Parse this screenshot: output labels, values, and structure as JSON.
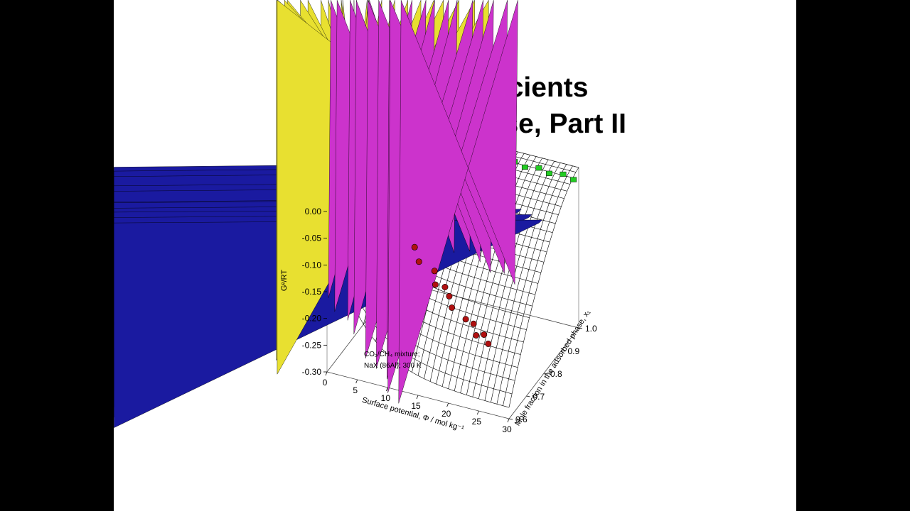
{
  "slide": {
    "title_line1": "Activity Coefficients",
    "title_line2": "in Adsorbed Phase, Part II"
  },
  "chart_data": {
    "type": "scatter",
    "subtype": "3d-surface-with-points",
    "title": "Activity Coefficients in Adsorbed Phase, Part II",
    "xlabel": "Surface potential, Φ /  mol kg⁻¹",
    "ylabel": "Mole fraction in the adsorbed phase, x₁",
    "zlabel": "Gᵉ/RT",
    "x_ticks": [
      "0",
      "5",
      "10",
      "15",
      "20",
      "25",
      "30"
    ],
    "y_ticks": [
      "0.6",
      "0.7",
      "0.8",
      "0.9",
      "1.0"
    ],
    "z_ticks": [
      "0.00",
      "-0.05",
      "-0.10",
      "-0.15",
      "-0.20",
      "-0.25",
      "-0.30"
    ],
    "xlim": [
      0,
      30
    ],
    "ylim": [
      0.6,
      1.0
    ],
    "zlim": [
      -0.3,
      0.0
    ],
    "annotation_line1": "CO₂/CH₄ mixture;",
    "annotation_line2": "NaX (86Al); 300 K",
    "surface_color": "#000000",
    "series": [
      {
        "marker": "circle",
        "color": "#b01010",
        "x": [
          13,
          14,
          16,
          17,
          18,
          19,
          20,
          22,
          23,
          24,
          25,
          26
        ],
        "y": [
          0.65,
          0.64,
          0.66,
          0.63,
          0.65,
          0.64,
          0.62,
          0.63,
          0.64,
          0.62,
          0.63,
          0.62
        ],
        "z": [
          -0.05,
          -0.07,
          -0.09,
          -0.1,
          -0.11,
          -0.12,
          -0.13,
          -0.15,
          -0.16,
          -0.17,
          -0.17,
          -0.18
        ]
      },
      {
        "marker": "triangle-down",
        "color": "#cc33cc",
        "x": [
          10,
          12,
          14,
          16,
          18,
          20,
          22,
          24,
          26,
          28
        ],
        "y": [
          0.74,
          0.75,
          0.73,
          0.74,
          0.72,
          0.74,
          0.73,
          0.72,
          0.73,
          0.72
        ],
        "z": [
          -0.04,
          -0.05,
          -0.06,
          -0.07,
          -0.08,
          -0.08,
          -0.09,
          -0.1,
          -0.1,
          -0.11
        ]
      },
      {
        "marker": "diamond",
        "color": "#e8e030",
        "x": [
          2,
          3,
          4,
          5,
          6,
          7,
          8,
          9,
          10,
          12,
          14,
          16
        ],
        "y": [
          0.62,
          0.65,
          0.7,
          0.74,
          0.78,
          0.82,
          0.86,
          0.9,
          0.92,
          0.94,
          0.96,
          0.97
        ],
        "z": [
          -0.08,
          -0.07,
          -0.06,
          -0.05,
          -0.05,
          -0.04,
          -0.04,
          -0.03,
          -0.03,
          -0.02,
          -0.02,
          -0.02
        ]
      },
      {
        "marker": "triangle-up",
        "color": "#1a1aa0",
        "x": [
          6,
          8,
          10,
          12,
          14,
          16,
          18,
          20,
          22,
          24,
          26,
          28
        ],
        "y": [
          0.86,
          0.88,
          0.87,
          0.86,
          0.88,
          0.87,
          0.86,
          0.87,
          0.86,
          0.88,
          0.87,
          0.86
        ],
        "z": [
          -0.01,
          -0.02,
          -0.02,
          -0.03,
          -0.03,
          -0.03,
          -0.04,
          -0.04,
          -0.04,
          -0.05,
          -0.05,
          -0.05
        ]
      },
      {
        "marker": "square",
        "color": "#22cc22",
        "x": [
          2,
          4,
          6,
          8,
          10,
          12,
          14,
          16,
          18,
          20,
          22,
          24,
          26,
          28,
          30
        ],
        "y": [
          0.97,
          0.98,
          0.97,
          0.98,
          0.97,
          0.98,
          0.97,
          0.98,
          0.97,
          0.98,
          0.97,
          0.98,
          0.97,
          0.98,
          0.97
        ],
        "z": [
          -0.01,
          -0.01,
          -0.01,
          -0.01,
          -0.01,
          -0.01,
          -0.01,
          -0.01,
          -0.01,
          -0.01,
          -0.01,
          -0.01,
          -0.01,
          -0.01,
          -0.01
        ]
      }
    ]
  }
}
